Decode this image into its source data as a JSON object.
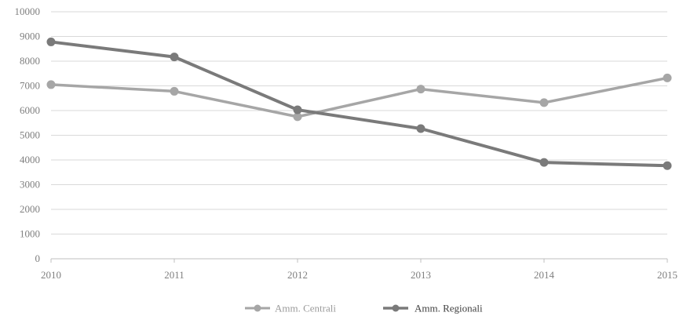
{
  "chart_data": {
    "type": "line",
    "x": [
      "2010",
      "2011",
      "2012",
      "2013",
      "2014",
      "2015"
    ],
    "yticks": [
      "0",
      "1000",
      "2000",
      "3000",
      "4000",
      "5000",
      "6000",
      "7000",
      "8000",
      "9000",
      "10000"
    ],
    "ylim": [
      0,
      10000
    ],
    "grid": true,
    "legend_position": "bottom-center",
    "series": [
      {
        "name": "Amm. Centrali",
        "color": "#a6a6a6",
        "values": [
          7050,
          6780,
          5750,
          6870,
          6320,
          7320
        ]
      },
      {
        "name": "Amm. Regionali",
        "color": "#7a7a7a",
        "values": [
          8780,
          8170,
          6030,
          5270,
          3900,
          3770
        ]
      }
    ]
  }
}
